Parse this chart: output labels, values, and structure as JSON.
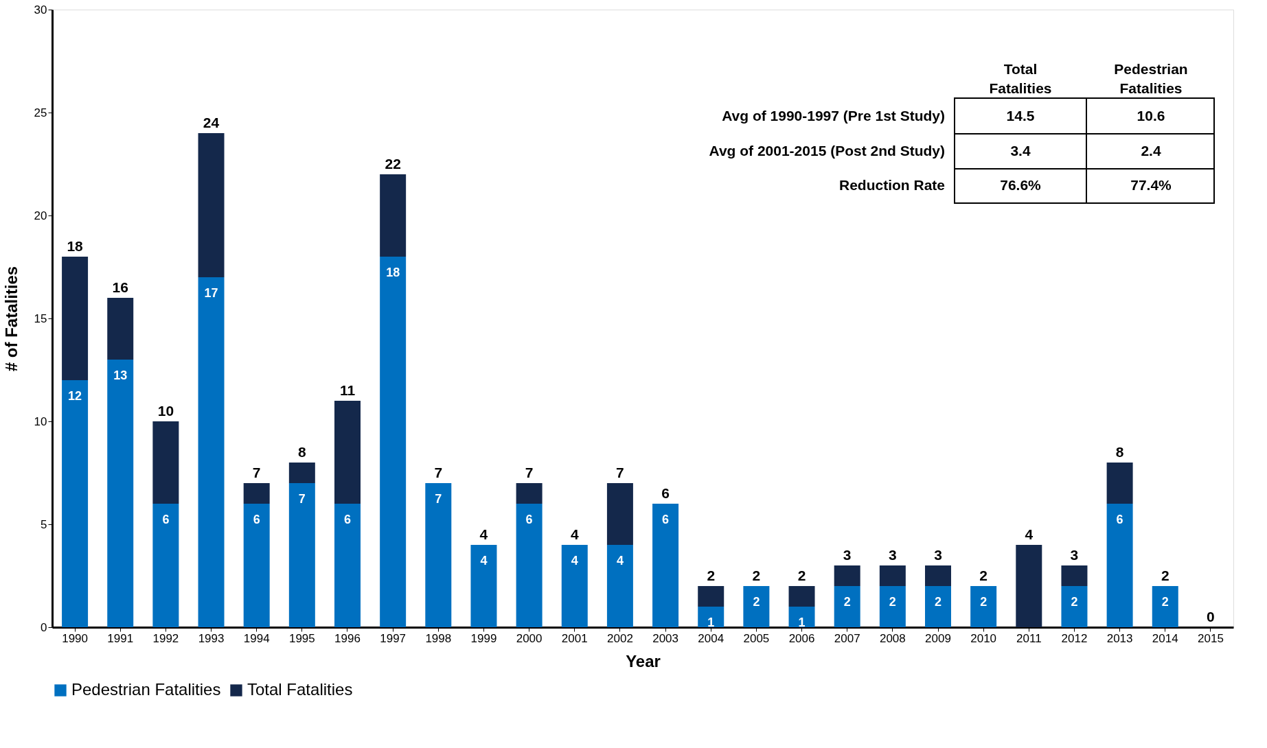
{
  "chart_data": {
    "type": "bar",
    "stacked": true,
    "xlabel": "Year",
    "ylabel": "# of Fatalities",
    "categories": [
      "1990",
      "1991",
      "1992",
      "1993",
      "1994",
      "1995",
      "1996",
      "1997",
      "1998",
      "1999",
      "2000",
      "2001",
      "2002",
      "2003",
      "2004",
      "2005",
      "2006",
      "2007",
      "2008",
      "2009",
      "2010",
      "2011",
      "2012",
      "2013",
      "2014",
      "2015"
    ],
    "series": [
      {
        "name": "Pedestrian Fatalities",
        "color": "#0070c0",
        "values": [
          12,
          13,
          6,
          17,
          6,
          7,
          6,
          18,
          7,
          4,
          6,
          4,
          4,
          6,
          1,
          2,
          1,
          2,
          2,
          2,
          2,
          0,
          2,
          6,
          2,
          0
        ],
        "value_labels": [
          "12",
          "13",
          "6",
          "17",
          "6",
          "7",
          "6",
          "18",
          "7",
          "4",
          "6",
          "4",
          "4",
          "6",
          "1",
          "2",
          "1",
          "2",
          "2",
          "2",
          "2",
          null,
          "2",
          "6",
          "2",
          null
        ]
      },
      {
        "name": "Total Fatalities",
        "color": "#14284b",
        "values": [
          6,
          3,
          4,
          7,
          1,
          1,
          5,
          4,
          0,
          0,
          1,
          0,
          3,
          0,
          1,
          0,
          1,
          1,
          1,
          1,
          0,
          4,
          1,
          2,
          0,
          0
        ]
      }
    ],
    "totals": [
      "18",
      "16",
      "10",
      "24",
      "7",
      "8",
      "11",
      "22",
      "7",
      "4",
      "7",
      "4",
      "7",
      "6",
      "2",
      "2",
      "2",
      "3",
      "3",
      "3",
      "2",
      "4",
      "3",
      "8",
      "2",
      "0"
    ],
    "ylim": [
      0,
      30
    ],
    "yticks": [
      0,
      5,
      10,
      15,
      20,
      25,
      30
    ],
    "legend": "bottom",
    "annotations": [
      "Total Fatalities",
      "Pedestrian Fatalities",
      "Avg of 1990-1997 (Pre 1st Study)",
      "14.5",
      "10.6",
      "Avg of 2001-2015 (Post 2nd Study)",
      "3.4",
      "2.4",
      "Reduction Rate",
      "76.6%",
      "77.4%"
    ]
  }
}
